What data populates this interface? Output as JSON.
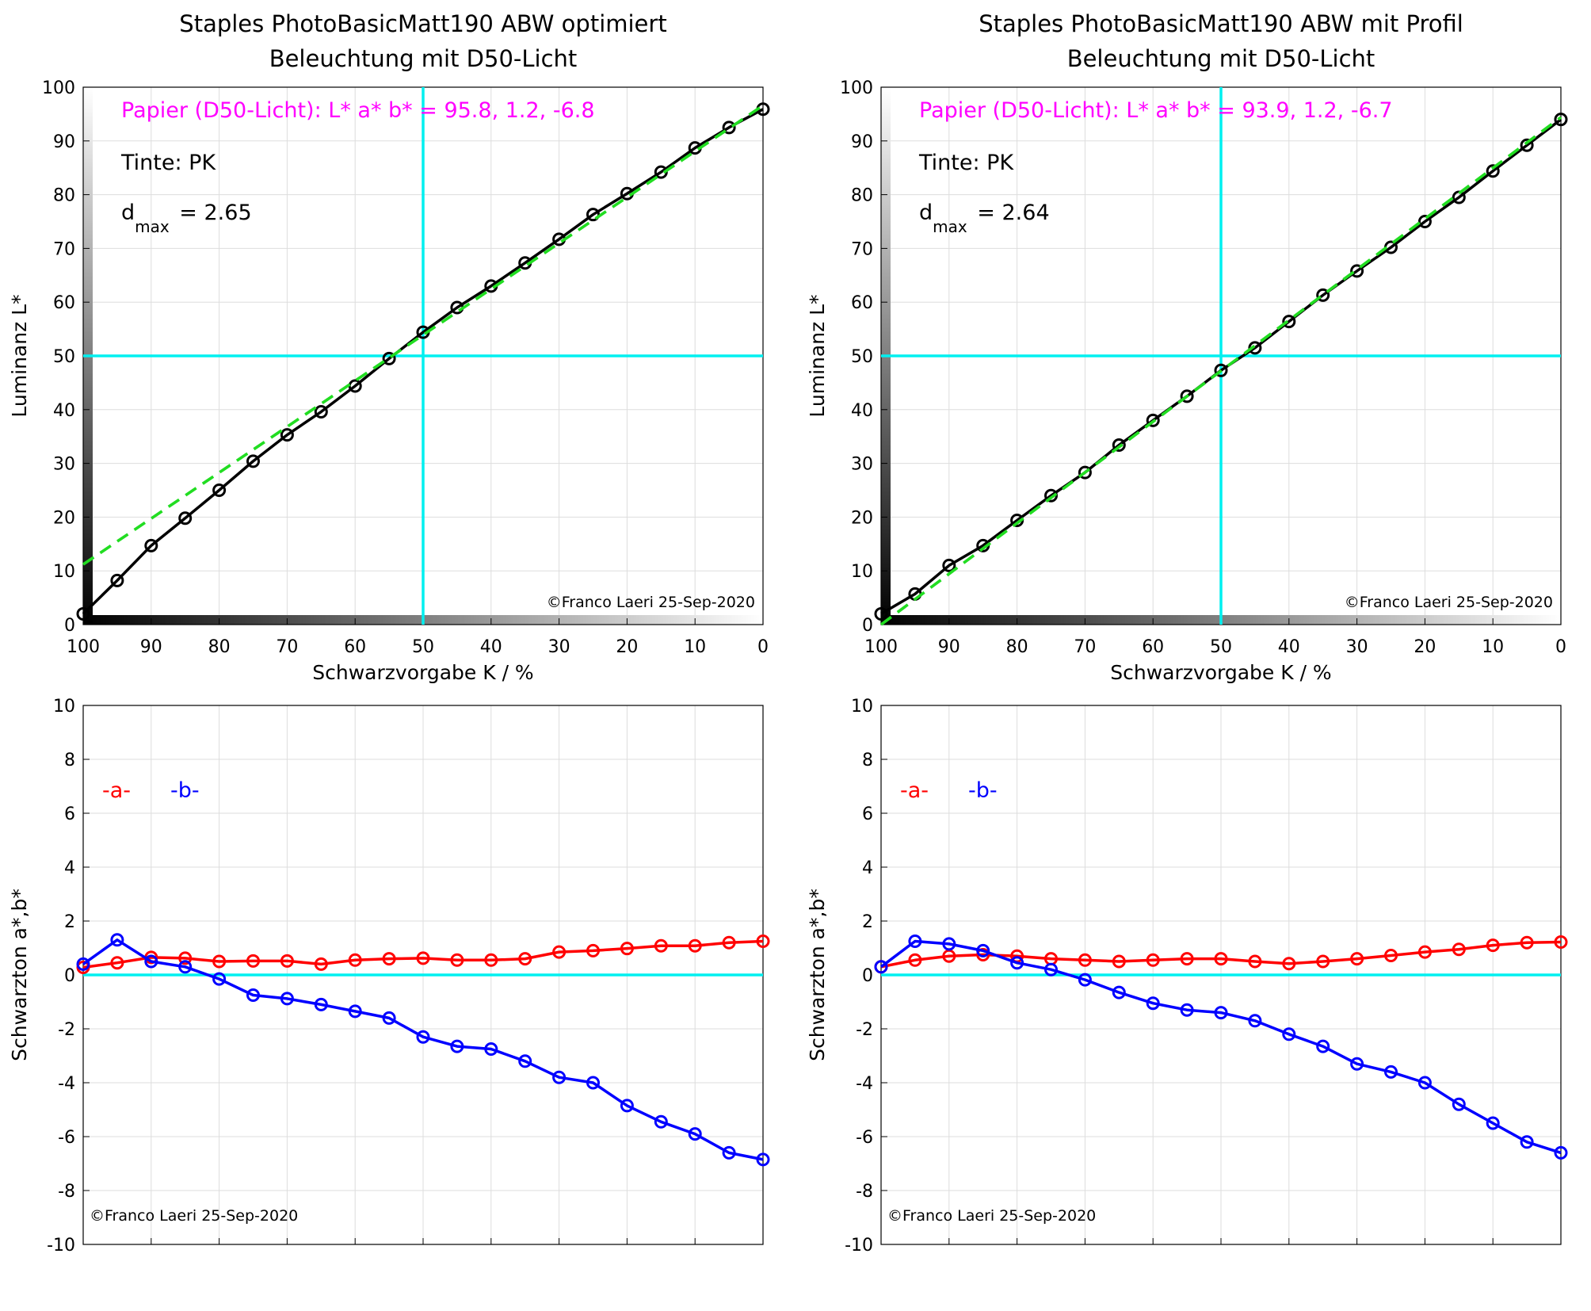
{
  "chart_data": [
    {
      "id": "lum-left",
      "type": "line",
      "title": [
        "Staples PhotoBasicMatt190 ABW optimiert",
        "Beleuchtung mit D50-Licht"
      ],
      "xlabel": "Schwarzvorgabe  K / %",
      "ylabel": "Luminanz  L*",
      "xlim": [
        100,
        0
      ],
      "ylim": [
        0,
        100
      ],
      "xticks": [
        "100",
        "90",
        "80",
        "70",
        "60",
        "50",
        "40",
        "30",
        "20",
        "10",
        "0"
      ],
      "yticks": [
        "0",
        "10",
        "20",
        "30",
        "40",
        "50",
        "60",
        "70",
        "80",
        "90",
        "100"
      ],
      "grid": true,
      "x": [
        100,
        95,
        90,
        85,
        80,
        75,
        70,
        65,
        60,
        55,
        50,
        45,
        40,
        35,
        30,
        25,
        20,
        15,
        10,
        5,
        0
      ],
      "series": [
        {
          "values": [
            2.0,
            8.2,
            14.7,
            19.8,
            25.0,
            30.4,
            35.3,
            39.6,
            44.4,
            49.5,
            54.4,
            59.0,
            63.0,
            67.3,
            71.7,
            76.3,
            80.2,
            84.2,
            88.7,
            92.5,
            95.9
          ],
          "color": "#000000",
          "style": "solid-markers"
        },
        {
          "line": [
            [
              100,
              11.2
            ],
            [
              0,
              96.6
            ]
          ],
          "color": "#22dd22",
          "style": "dashed"
        }
      ],
      "crosshair": {
        "x": 50,
        "y": 50,
        "color": "#00f0f0"
      },
      "annotations": {
        "paper": "Papier (D50-Licht): L* a* b* = 95.8, 1.2, -6.8",
        "tinte": "Tinte:  PK",
        "dmax_base": "d",
        "dmax_sub": "max",
        "dmax_value": " = 2.65",
        "copyright": "©Franco Laeri  25-Sep-2020"
      }
    },
    {
      "id": "lum-right",
      "type": "line",
      "title": [
        "Staples PhotoBasicMatt190 ABW mit Profil",
        "Beleuchtung mit D50-Licht"
      ],
      "xlabel": "Schwarzvorgabe  K / %",
      "ylabel": "Luminanz  L*",
      "xlim": [
        100,
        0
      ],
      "ylim": [
        0,
        100
      ],
      "xticks": [
        "100",
        "90",
        "80",
        "70",
        "60",
        "50",
        "40",
        "30",
        "20",
        "10",
        "0"
      ],
      "yticks": [
        "0",
        "10",
        "20",
        "30",
        "40",
        "50",
        "60",
        "70",
        "80",
        "90",
        "100"
      ],
      "grid": true,
      "x": [
        100,
        95,
        90,
        85,
        80,
        75,
        70,
        65,
        60,
        55,
        50,
        45,
        40,
        35,
        30,
        25,
        20,
        15,
        10,
        5,
        0
      ],
      "series": [
        {
          "values": [
            2.0,
            5.7,
            11.0,
            14.7,
            19.4,
            24.0,
            28.3,
            33.4,
            38.0,
            42.5,
            47.3,
            51.5,
            56.4,
            61.3,
            65.8,
            70.2,
            75.0,
            79.5,
            84.4,
            89.2,
            94.0
          ],
          "color": "#000000",
          "style": "solid-markers"
        },
        {
          "line": [
            [
              100,
              0.0
            ],
            [
              0,
              94.4
            ]
          ],
          "color": "#22dd22",
          "style": "dashed"
        }
      ],
      "crosshair": {
        "x": 50,
        "y": 50,
        "color": "#00f0f0"
      },
      "annotations": {
        "paper": "Papier (D50-Licht): L* a* b* = 93.9, 1.2, -6.7",
        "tinte": "Tinte:  PK",
        "dmax_base": "d",
        "dmax_sub": "max",
        "dmax_value": " = 2.64",
        "copyright": "©Franco Laeri  25-Sep-2020"
      }
    },
    {
      "id": "ab-left",
      "type": "line",
      "ylabel": "Schwarzton a*,b*",
      "xlim": [
        100,
        0
      ],
      "ylim": [
        -10,
        10
      ],
      "yticks": [
        "-10",
        "-8",
        "-6",
        "-4",
        "-2",
        "0",
        "2",
        "4",
        "6",
        "8",
        "10"
      ],
      "grid": true,
      "x": [
        100,
        95,
        90,
        85,
        80,
        75,
        70,
        65,
        60,
        55,
        50,
        45,
        40,
        35,
        30,
        25,
        20,
        15,
        10,
        5,
        0
      ],
      "series": [
        {
          "name": "-a-",
          "color": "#ff0000",
          "values": [
            0.28,
            0.45,
            0.65,
            0.62,
            0.5,
            0.52,
            0.52,
            0.4,
            0.55,
            0.6,
            0.62,
            0.55,
            0.55,
            0.6,
            0.85,
            0.9,
            0.98,
            1.08,
            1.08,
            1.2,
            1.25
          ]
        },
        {
          "name": "-b-",
          "color": "#0000ff",
          "values": [
            0.4,
            1.3,
            0.5,
            0.3,
            -0.15,
            -0.75,
            -0.88,
            -1.1,
            -1.35,
            -1.6,
            -2.3,
            -2.65,
            -2.75,
            -3.2,
            -3.8,
            -4.0,
            -4.85,
            -5.45,
            -5.9,
            -6.6,
            -6.85
          ]
        }
      ],
      "zero_line_color": "#00f0f0",
      "annotations": {
        "copyright": "©Franco Laeri  25-Sep-2020"
      }
    },
    {
      "id": "ab-right",
      "type": "line",
      "ylabel": "Schwarzton a*,b*",
      "xlim": [
        100,
        0
      ],
      "ylim": [
        -10,
        10
      ],
      "yticks": [
        "-10",
        "-8",
        "-6",
        "-4",
        "-2",
        "0",
        "2",
        "4",
        "6",
        "8",
        "10"
      ],
      "grid": true,
      "x": [
        100,
        95,
        90,
        85,
        80,
        75,
        70,
        65,
        60,
        55,
        50,
        45,
        40,
        35,
        30,
        25,
        20,
        15,
        10,
        5,
        0
      ],
      "series": [
        {
          "name": "-a-",
          "color": "#ff0000",
          "values": [
            0.3,
            0.55,
            0.7,
            0.75,
            0.7,
            0.6,
            0.55,
            0.5,
            0.55,
            0.6,
            0.6,
            0.5,
            0.42,
            0.5,
            0.6,
            0.72,
            0.85,
            0.95,
            1.1,
            1.2,
            1.22
          ]
        },
        {
          "name": "-b-",
          "color": "#0000ff",
          "values": [
            0.3,
            1.25,
            1.15,
            0.9,
            0.45,
            0.2,
            -0.18,
            -0.65,
            -1.05,
            -1.3,
            -1.4,
            -1.7,
            -2.2,
            -2.65,
            -3.3,
            -3.6,
            -4.0,
            -4.8,
            -5.5,
            -6.2,
            -6.6
          ]
        }
      ],
      "zero_line_color": "#00f0f0",
      "annotations": {
        "copyright": "©Franco Laeri  25-Sep-2020"
      }
    }
  ],
  "colors": {
    "paper_text": "#ff00ff",
    "grid": "#dddddd",
    "crosshair": "#00f0f0",
    "fit_line": "#22dd22"
  }
}
